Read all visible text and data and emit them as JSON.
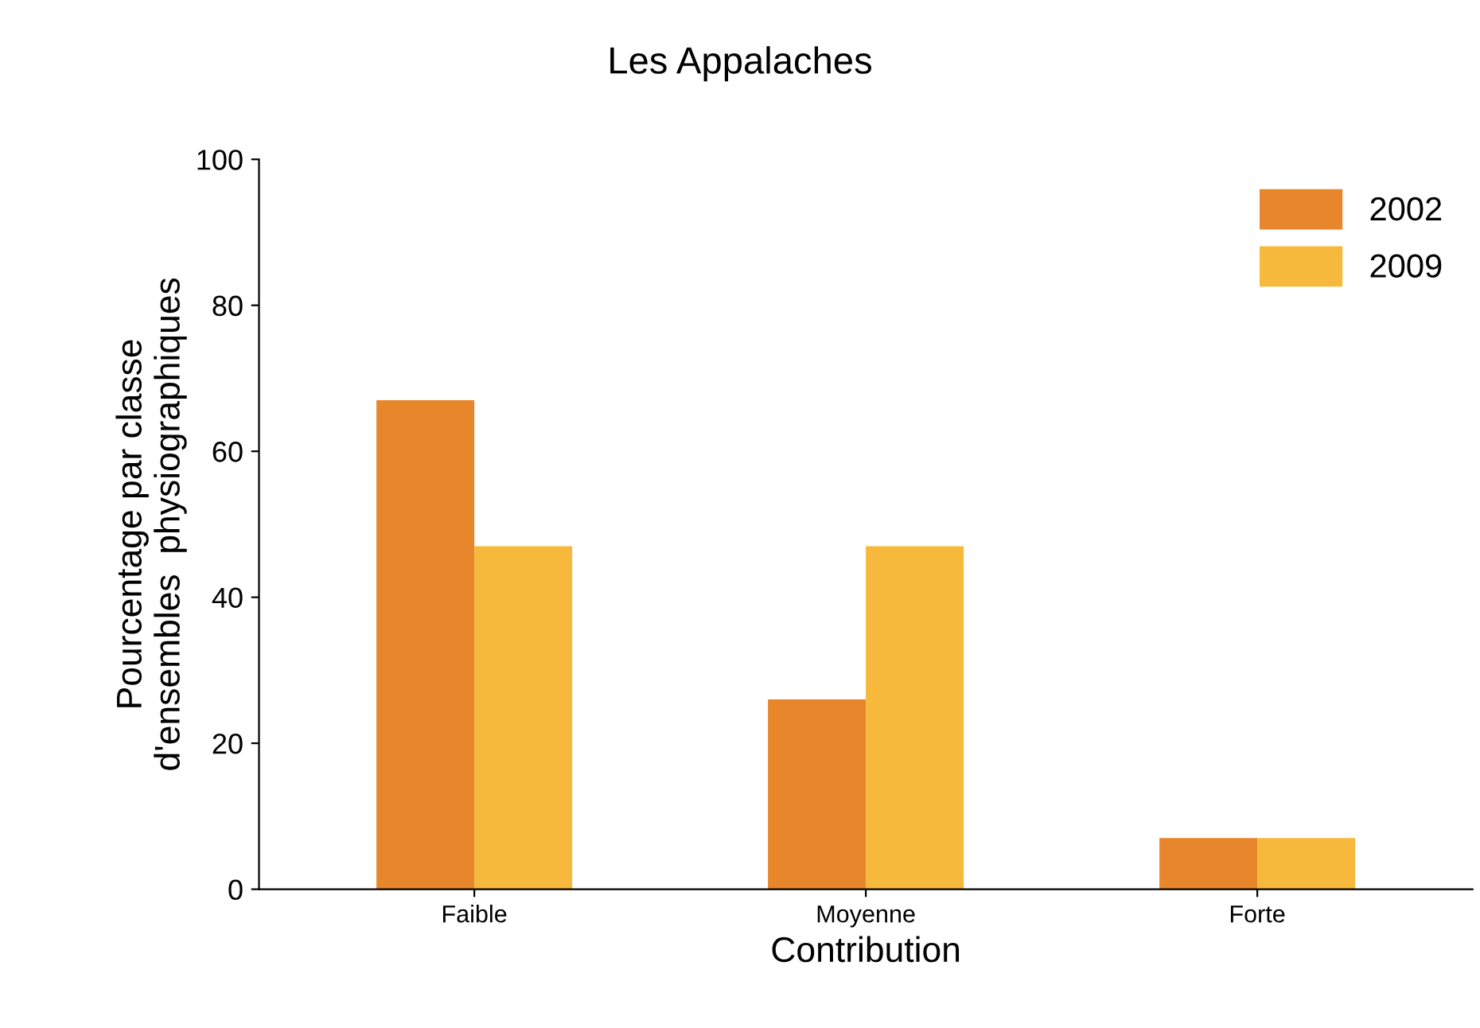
{
  "chart_data": {
    "type": "bar",
    "title": "Les Appalaches",
    "xlabel": "Contribution",
    "ylabel": "Pourcentage par classe\nd'ensembles  physiographiques",
    "categories": [
      "Faible",
      "Moyenne",
      "Forte"
    ],
    "series": [
      {
        "name": "2002",
        "color": "#e8862c",
        "values": [
          67,
          26,
          7
        ]
      },
      {
        "name": "2009",
        "color": "#f6b93b",
        "values": [
          47,
          47,
          7
        ]
      }
    ],
    "ylim": [
      0,
      100
    ],
    "yticks": [
      0,
      20,
      40,
      60,
      80,
      100
    ],
    "grid": false,
    "legend": "top right"
  }
}
